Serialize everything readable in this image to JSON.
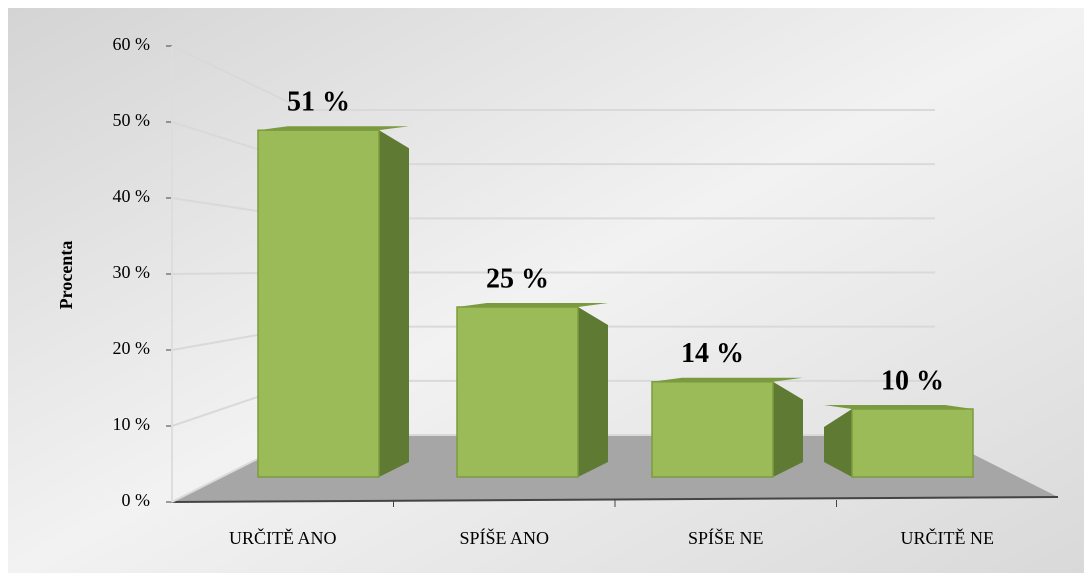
{
  "chart_data": {
    "type": "bar3d",
    "y_label": "Procenta",
    "categories": [
      "URČITĚ ANO",
      "SPÍŠE ANO",
      "SPÍŠE NE",
      "URČITĚ NE"
    ],
    "values": [
      51,
      25,
      14,
      10
    ],
    "value_labels": [
      "51 %",
      "25 %",
      "14 %",
      "10 %"
    ],
    "color": "#9bbb59",
    "ylim": [
      0,
      60
    ],
    "yticks": [
      {
        "value": 0,
        "label": "0 %"
      },
      {
        "value": 10,
        "label": "10 %"
      },
      {
        "value": 20,
        "label": "20 %"
      },
      {
        "value": 30,
        "label": "30 %"
      },
      {
        "value": 40,
        "label": "40 %"
      },
      {
        "value": 50,
        "label": "50 %"
      },
      {
        "value": 60,
        "label": "60 %"
      }
    ],
    "grid": true
  }
}
